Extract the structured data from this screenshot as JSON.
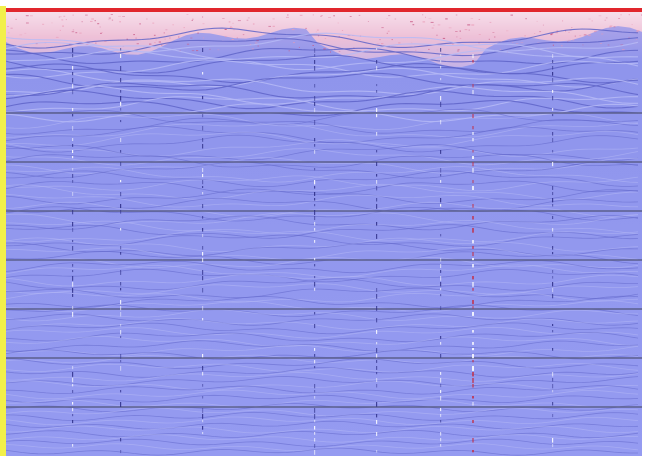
{
  "image": {
    "type": "seismic-radargram-profile",
    "colors": {
      "background": "#ffffff",
      "left_bar": "#f2f04a",
      "top_edge": "#e1262d",
      "surface_band": "#f4c7d6",
      "surface_band_strong": "#e99ab5",
      "body_fill": "#8e93ec",
      "body_fill_deep": "#949af0",
      "trace_light": "#b6baf6",
      "trace_dark": "#5f64c8",
      "grid_line": "#5b5f8c",
      "vertical_marker_red": "#c0304a",
      "vertical_marker_dark": "#2e2f88"
    },
    "horizontal_grid_count": 7,
    "vertical_marker_count": 8
  }
}
